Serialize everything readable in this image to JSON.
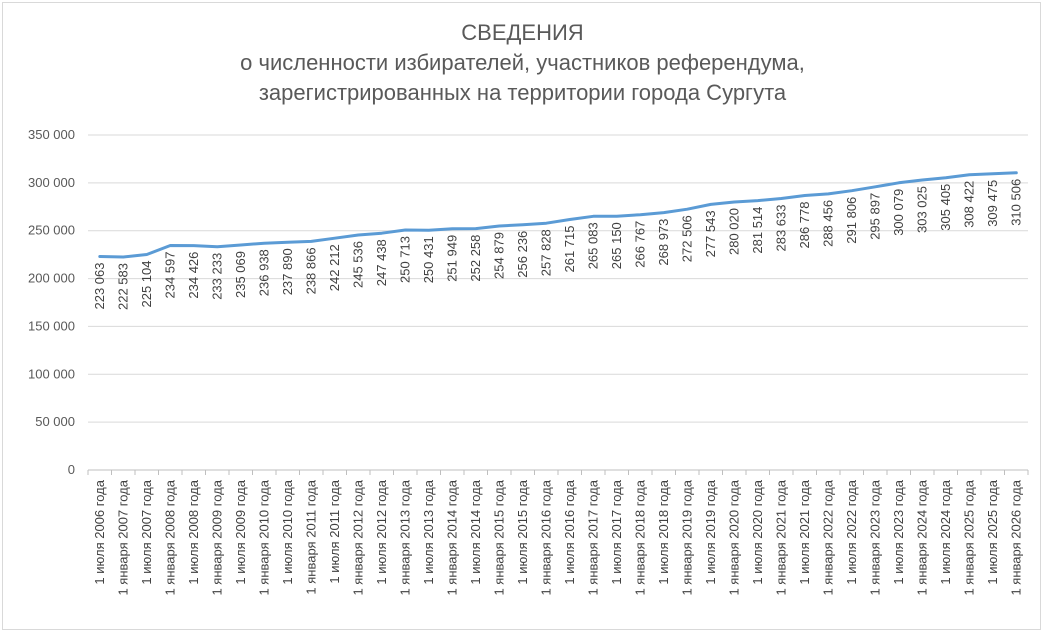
{
  "chart_data": {
    "type": "line",
    "title_lines": [
      "СВЕДЕНИЯ",
      "о численности избирателей, участников референдума,",
      "зарегистрированных на территории города Сургута"
    ],
    "categories": [
      "1 июля 2006 года",
      "1 января 2007 года",
      "1 июля 2007 года",
      "1 января 2008 года",
      "1 июля 2008 года",
      "1 января 2009 года",
      "1 июля 2009 года",
      "1 января 2010 года",
      "1 июля 2010 года",
      "1 января 2011 года",
      "1 июля 2011 года",
      "1 января 2012 года",
      "1 июля 2012 года",
      "1 января 2013 года",
      "1 июля 2013 года",
      "1 января 2014 года",
      "1 июля 2014 года",
      "1 января 2015 года",
      "1 июля 2015 года",
      "1 января 2016 года",
      "1 июля 2016 года",
      "1 января 2017 года",
      "1 июля 2017 года",
      "1 января 2018 года",
      "1 июля 2018 года",
      "1 января 2019 года",
      "1 июля 2019 года",
      "1 января 2020 года",
      "1 июля 2020 года",
      "1 января 2021 года",
      "1 июля 2021 года",
      "1 января 2022 года",
      "1 июля 2022 года",
      "1 января 2023 года",
      "1 июля 2023 года",
      "1 января 2024 года",
      "1 июля 2024 года",
      "1 января 2025 года",
      "1 июля 2025 года",
      "1 января 2026 года"
    ],
    "values": [
      223063,
      222583,
      225104,
      234597,
      234426,
      233233,
      235069,
      236938,
      237890,
      238866,
      242212,
      245536,
      247438,
      250713,
      250431,
      251949,
      252258,
      254879,
      256236,
      257828,
      261715,
      265083,
      265150,
      266767,
      268973,
      272506,
      277543,
      280020,
      281514,
      283633,
      286778,
      288456,
      291806,
      295897,
      300079,
      303025,
      305405,
      308422,
      309475,
      310506
    ],
    "data_labels": [
      "223 063",
      "222 583",
      "225 104",
      "234 597",
      "234 426",
      "233 233",
      "235 069",
      "236 938",
      "237 890",
      "238 866",
      "242 212",
      "245 536",
      "247 438",
      "250 713",
      "250 431",
      "251 949",
      "252 258",
      "254 879",
      "256 236",
      "257 828",
      "261 715",
      "265 083",
      "265 150",
      "266 767",
      "268 973",
      "272 506",
      "277 543",
      "280 020",
      "281 514",
      "283 633",
      "286 778",
      "288 456",
      "291 806",
      "295 897",
      "300 079",
      "303 025",
      "305 405",
      "308 422",
      "309 475",
      "310 506"
    ],
    "y_ticks": [
      0,
      50000,
      100000,
      150000,
      200000,
      250000,
      300000,
      350000
    ],
    "y_tick_labels": [
      "0",
      "50 000",
      "100 000",
      "150 000",
      "200 000",
      "250 000",
      "300 000",
      "350 000"
    ],
    "ylim": [
      0,
      350000
    ],
    "grid": true,
    "legend": "none",
    "line_color": "#5b9bd5",
    "grid_color": "#d9d9d9",
    "text_color": "#595959"
  }
}
